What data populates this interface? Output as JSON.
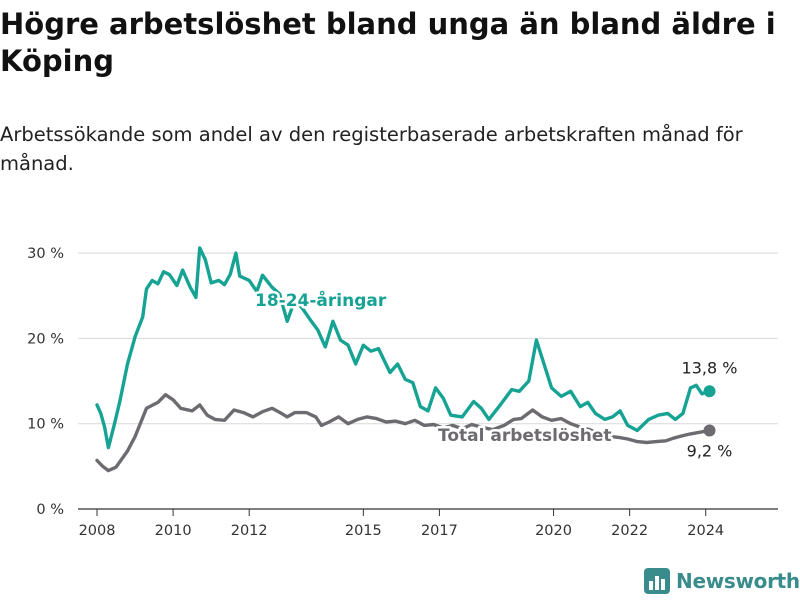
{
  "chart_data": {
    "type": "line",
    "title": "Högre arbetslöshet bland unga än bland äldre i Köping",
    "subtitle": "Arbetssökande som andel av den registerbaserade arbetskraften månad för månad.",
    "ylim": [
      0,
      32
    ],
    "y_ticks": [
      0,
      10,
      20,
      30
    ],
    "y_tick_labels": [
      "0 %",
      "10 %",
      "20 %",
      "30 %"
    ],
    "x_ticks": [
      2008,
      2010,
      2012,
      2015,
      2017,
      2020,
      2022,
      2024
    ],
    "x_tick_labels": [
      "2008",
      "2010",
      "2012",
      "2015",
      "2017",
      "2020",
      "2022",
      "2024"
    ],
    "xlim": [
      2007.5,
      2025.9
    ],
    "grid": "horizontal",
    "colors": {
      "youth": "#16a394",
      "total": "#6e6b70"
    },
    "series": [
      {
        "name": "18-24-åringar",
        "end_label": "13,8 %",
        "points": [
          [
            2008.0,
            12.2
          ],
          [
            2008.1,
            11.2
          ],
          [
            2008.2,
            9.6
          ],
          [
            2008.3,
            7.2
          ],
          [
            2008.45,
            9.8
          ],
          [
            2008.6,
            12.6
          ],
          [
            2008.8,
            17.0
          ],
          [
            2009.0,
            20.2
          ],
          [
            2009.2,
            22.5
          ],
          [
            2009.3,
            25.8
          ],
          [
            2009.45,
            26.8
          ],
          [
            2009.6,
            26.4
          ],
          [
            2009.75,
            27.8
          ],
          [
            2009.9,
            27.5
          ],
          [
            2010.1,
            26.2
          ],
          [
            2010.25,
            28.0
          ],
          [
            2010.45,
            26.0
          ],
          [
            2010.6,
            24.8
          ],
          [
            2010.7,
            30.6
          ],
          [
            2010.85,
            29.2
          ],
          [
            2011.0,
            26.5
          ],
          [
            2011.2,
            26.8
          ],
          [
            2011.35,
            26.3
          ],
          [
            2011.5,
            27.5
          ],
          [
            2011.65,
            30.0
          ],
          [
            2011.75,
            27.3
          ],
          [
            2012.0,
            26.8
          ],
          [
            2012.2,
            25.5
          ],
          [
            2012.35,
            27.4
          ],
          [
            2012.6,
            26.0
          ],
          [
            2012.8,
            25.2
          ],
          [
            2013.0,
            22.0
          ],
          [
            2013.2,
            24.5
          ],
          [
            2013.4,
            23.5
          ],
          [
            2013.6,
            22.2
          ],
          [
            2013.8,
            21.0
          ],
          [
            2014.0,
            19.0
          ],
          [
            2014.2,
            22.0
          ],
          [
            2014.4,
            19.8
          ],
          [
            2014.6,
            19.2
          ],
          [
            2014.8,
            17.0
          ],
          [
            2015.0,
            19.2
          ],
          [
            2015.2,
            18.5
          ],
          [
            2015.4,
            18.8
          ],
          [
            2015.7,
            16.0
          ],
          [
            2015.9,
            17.0
          ],
          [
            2016.1,
            15.2
          ],
          [
            2016.3,
            14.8
          ],
          [
            2016.5,
            12.0
          ],
          [
            2016.7,
            11.5
          ],
          [
            2016.9,
            14.2
          ],
          [
            2017.1,
            13.0
          ],
          [
            2017.3,
            11.0
          ],
          [
            2017.6,
            10.8
          ],
          [
            2017.9,
            12.6
          ],
          [
            2018.1,
            11.8
          ],
          [
            2018.3,
            10.5
          ],
          [
            2018.6,
            12.2
          ],
          [
            2018.9,
            14.0
          ],
          [
            2019.1,
            13.8
          ],
          [
            2019.35,
            15.0
          ],
          [
            2019.55,
            19.8
          ],
          [
            2019.75,
            17.0
          ],
          [
            2019.95,
            14.2
          ],
          [
            2020.2,
            13.2
          ],
          [
            2020.45,
            13.8
          ],
          [
            2020.7,
            12.0
          ],
          [
            2020.9,
            12.5
          ],
          [
            2021.1,
            11.2
          ],
          [
            2021.35,
            10.5
          ],
          [
            2021.55,
            10.8
          ],
          [
            2021.75,
            11.5
          ],
          [
            2021.95,
            9.8
          ],
          [
            2022.2,
            9.2
          ],
          [
            2022.5,
            10.5
          ],
          [
            2022.75,
            11.0
          ],
          [
            2023.0,
            11.2
          ],
          [
            2023.2,
            10.5
          ],
          [
            2023.4,
            11.2
          ],
          [
            2023.6,
            14.2
          ],
          [
            2023.75,
            14.5
          ],
          [
            2023.9,
            13.5
          ],
          [
            2024.1,
            13.8
          ]
        ]
      },
      {
        "name": "Total arbetslöshet",
        "end_label": "9,2 %",
        "points": [
          [
            2008.0,
            5.7
          ],
          [
            2008.15,
            5.0
          ],
          [
            2008.3,
            4.5
          ],
          [
            2008.5,
            4.9
          ],
          [
            2008.8,
            6.8
          ],
          [
            2009.0,
            8.5
          ],
          [
            2009.3,
            11.8
          ],
          [
            2009.6,
            12.5
          ],
          [
            2009.8,
            13.4
          ],
          [
            2010.0,
            12.8
          ],
          [
            2010.2,
            11.8
          ],
          [
            2010.5,
            11.5
          ],
          [
            2010.7,
            12.2
          ],
          [
            2010.9,
            11.0
          ],
          [
            2011.1,
            10.5
          ],
          [
            2011.35,
            10.4
          ],
          [
            2011.6,
            11.6
          ],
          [
            2011.85,
            11.3
          ],
          [
            2012.1,
            10.8
          ],
          [
            2012.35,
            11.4
          ],
          [
            2012.6,
            11.8
          ],
          [
            2012.85,
            11.2
          ],
          [
            2013.0,
            10.8
          ],
          [
            2013.2,
            11.3
          ],
          [
            2013.5,
            11.3
          ],
          [
            2013.75,
            10.8
          ],
          [
            2013.9,
            9.8
          ],
          [
            2014.1,
            10.2
          ],
          [
            2014.35,
            10.8
          ],
          [
            2014.6,
            10.0
          ],
          [
            2014.85,
            10.5
          ],
          [
            2015.1,
            10.8
          ],
          [
            2015.35,
            10.6
          ],
          [
            2015.6,
            10.2
          ],
          [
            2015.85,
            10.3
          ],
          [
            2016.1,
            10.0
          ],
          [
            2016.35,
            10.4
          ],
          [
            2016.6,
            9.8
          ],
          [
            2016.85,
            9.9
          ],
          [
            2017.1,
            9.5
          ],
          [
            2017.35,
            9.8
          ],
          [
            2017.6,
            9.4
          ],
          [
            2017.85,
            9.9
          ],
          [
            2018.1,
            9.6
          ],
          [
            2018.4,
            9.3
          ],
          [
            2018.7,
            9.8
          ],
          [
            2018.95,
            10.5
          ],
          [
            2019.15,
            10.6
          ],
          [
            2019.45,
            11.6
          ],
          [
            2019.7,
            10.8
          ],
          [
            2019.95,
            10.4
          ],
          [
            2020.2,
            10.6
          ],
          [
            2020.45,
            10.0
          ],
          [
            2020.7,
            9.6
          ],
          [
            2020.95,
            9.3
          ],
          [
            2021.2,
            8.8
          ],
          [
            2021.45,
            8.5
          ],
          [
            2021.7,
            8.4
          ],
          [
            2021.95,
            8.2
          ],
          [
            2022.2,
            7.9
          ],
          [
            2022.45,
            7.8
          ],
          [
            2022.7,
            7.9
          ],
          [
            2022.95,
            8.0
          ],
          [
            2023.15,
            8.3
          ],
          [
            2023.4,
            8.6
          ],
          [
            2023.6,
            8.8
          ],
          [
            2023.85,
            9.0
          ],
          [
            2024.1,
            9.2
          ]
        ]
      }
    ]
  },
  "brand": {
    "name": "Newsworthy"
  }
}
